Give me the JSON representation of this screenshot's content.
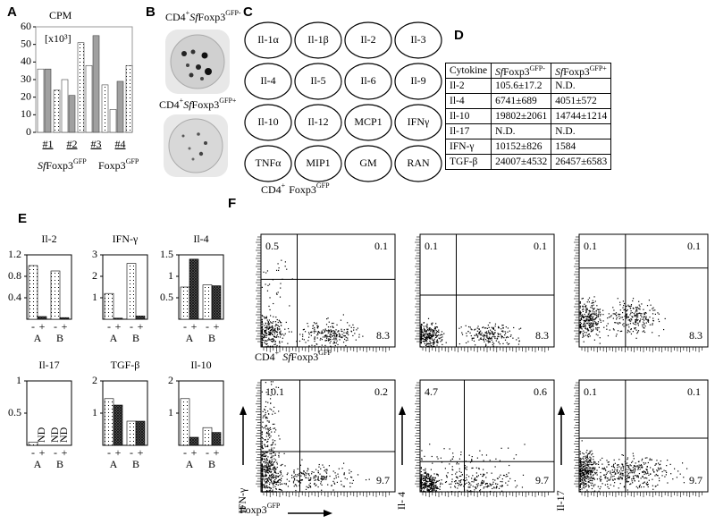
{
  "panel_a": {
    "letter": "A"
  },
  "panel_b": {
    "letter": "B",
    "labels": [
      [
        "CD4",
        "+",
        "Sf",
        "Foxp3",
        "GFP-"
      ],
      [
        "CD4",
        "+",
        "Sf",
        "Foxp3",
        "GFP+"
      ]
    ]
  },
  "panel_c": {
    "letter": "C",
    "cytokines": [
      "Il-1α",
      "Il-1β",
      "Il-2",
      "Il-3",
      "Il-4",
      "Il-5",
      "Il-6",
      "Il-9",
      "Il-10",
      "Il-12",
      "MCP1",
      "IFNγ",
      "TNFα",
      "MIP1",
      "GM",
      "RAN"
    ]
  },
  "panel_d": {
    "letter": "D",
    "table": {
      "header": [
        "Cytokine",
        [
          "Sf",
          "Foxp3",
          "GFP-"
        ],
        [
          "Sf",
          "Foxp3",
          "GFP+"
        ]
      ],
      "rows": [
        [
          "Il-2",
          "105.6±17.2",
          "N.D."
        ],
        [
          "Il-4",
          "6741±689",
          "4051±572"
        ],
        [
          "Il-10",
          "19802±2061",
          "14744±1214"
        ],
        [
          "Il-17",
          "N.D.",
          "N.D."
        ],
        [
          "IFN-γ",
          "10152±826",
          "1584"
        ],
        [
          "TGF-β",
          "24007±4532",
          "26457±6583"
        ]
      ]
    }
  },
  "panel_e": {
    "letter": "E"
  },
  "panel_f": {
    "letter": "F",
    "row_labels": [
      [
        "CD4",
        "+",
        "Foxp3",
        "GFP"
      ],
      [
        "CD4",
        "+",
        "Sf",
        "Foxp3",
        "GFP"
      ]
    ],
    "x_label": [
      "Foxp3",
      "GFP"
    ],
    "plots": [
      {
        "quadrant_values": [
          0.5,
          0.1,
          8.3
        ]
      },
      {
        "quadrant_values": [
          0.1,
          0.1,
          8.3
        ]
      },
      {
        "quadrant_values": [
          0.1,
          0.1,
          8.3
        ]
      },
      {
        "quadrant_values": [
          10.1,
          0.2,
          9.7
        ],
        "y_label": "IFN-γ"
      },
      {
        "quadrant_values": [
          4.7,
          0.6,
          9.7
        ],
        "y_label": "Il- 4"
      },
      {
        "quadrant_values": [
          0.1,
          0.1,
          9.7
        ],
        "y_label": "Il-17"
      }
    ]
  },
  "chart_data": [
    {
      "type": "bar",
      "title": "CPM",
      "ylabel": "[x10³]",
      "categories": [
        "#1",
        "#2",
        "#3",
        "#4"
      ],
      "group_labels": [
        [
          "Sf",
          "Foxp3",
          "GFP"
        ],
        [
          "Foxp3",
          "GFP"
        ]
      ],
      "series": [
        {
          "color": "#ffffff",
          "values": [
            36,
            30,
            38,
            13
          ]
        },
        {
          "color": "#a0a0a0",
          "values": [
            36,
            21,
            55,
            29
          ]
        },
        {
          "color": "#ffffff",
          "pattern": "dots",
          "values": [
            24,
            51,
            27,
            38
          ]
        }
      ],
      "ylim": [
        0,
        60
      ],
      "yticks": [
        0,
        10,
        20,
        30,
        40,
        50,
        60
      ]
    },
    {
      "type": "bar",
      "title": "Il-2",
      "categories": [
        "-",
        "+",
        "-",
        "+"
      ],
      "groups": [
        "A",
        "B"
      ],
      "patterns": [
        "dots",
        "hatch",
        "dots",
        "hatch"
      ],
      "values": [
        1.0,
        0.05,
        0.9,
        0.03
      ],
      "ylim": [
        0,
        1.2
      ],
      "yticks": [
        0.4,
        0.8,
        1.2
      ]
    },
    {
      "type": "bar",
      "title": "IFN-γ",
      "categories": [
        "-",
        "+",
        "-",
        "+"
      ],
      "groups": [
        "A",
        "B"
      ],
      "patterns": [
        "dots",
        "hatch",
        "dots",
        "hatch"
      ],
      "values": [
        1.2,
        0.05,
        2.6,
        0.15
      ],
      "ylim": [
        0,
        3
      ],
      "yticks": [
        1,
        2,
        3
      ]
    },
    {
      "type": "bar",
      "title": "Il-4",
      "categories": [
        "-",
        "+",
        "-",
        "+"
      ],
      "groups": [
        "A",
        "B"
      ],
      "patterns": [
        "dots",
        "hatch",
        "dots",
        "hatch"
      ],
      "values": [
        0.75,
        1.4,
        0.8,
        0.78
      ],
      "ylim": [
        0,
        1.5
      ],
      "yticks": [
        0.5,
        1,
        1.5
      ]
    },
    {
      "type": "bar",
      "title": "Il-17",
      "categories": [
        "-",
        "+",
        "-",
        "+"
      ],
      "groups": [
        "A",
        "B"
      ],
      "patterns": [
        "dots",
        "hatch",
        "dots",
        "hatch"
      ],
      "values": [
        0.05,
        null,
        null,
        null
      ],
      "value_labels": [
        null,
        "ND",
        "ND",
        "ND"
      ],
      "ylim": [
        0,
        1
      ],
      "yticks": [
        0.5,
        1
      ]
    },
    {
      "type": "bar",
      "title": "TGF-β",
      "categories": [
        "-",
        "+",
        "-",
        "+"
      ],
      "groups": [
        "A",
        "B"
      ],
      "patterns": [
        "dots",
        "hatch",
        "dots",
        "hatch"
      ],
      "values": [
        1.45,
        1.25,
        0.75,
        0.75
      ],
      "ylim": [
        0,
        2
      ],
      "yticks": [
        1,
        2
      ]
    },
    {
      "type": "bar",
      "title": "Il-10",
      "categories": [
        "-",
        "+",
        "-",
        "+"
      ],
      "groups": [
        "A",
        "B"
      ],
      "patterns": [
        "dots",
        "hatch",
        "dots",
        "hatch"
      ],
      "values": [
        1.45,
        0.25,
        0.55,
        0.4
      ],
      "ylim": [
        0,
        2
      ],
      "yticks": [
        1,
        2
      ]
    }
  ]
}
